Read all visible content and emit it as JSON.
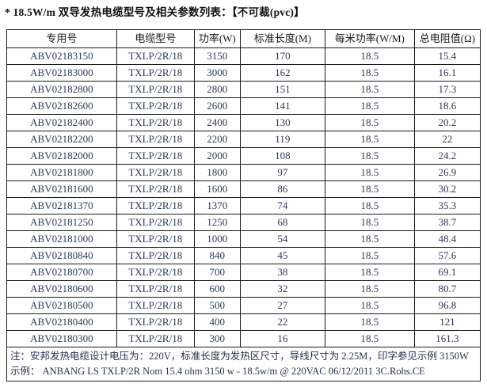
{
  "title": "* 18.5W/m 双导发热电缆型号及相关参数列表：【不可裁(pvc)】",
  "table": {
    "headers": [
      "专用号",
      "电缆型号",
      "功率(W)",
      "标准长度(M)",
      "每米功率(W/M)",
      "总电阻值(Ω)"
    ],
    "rows": [
      [
        "ABV02183150",
        "TXLP/2R/18",
        "3150",
        "170",
        "18.5",
        "15.4"
      ],
      [
        "ABV02183000",
        "TXLP/2R/18",
        "3000",
        "162",
        "18.5",
        "16.1"
      ],
      [
        "ABV02182800",
        "TXLP/2R/18",
        "2800",
        "151",
        "18.5",
        "17.3"
      ],
      [
        "ABV02182600",
        "TXLP/2R/18",
        "2600",
        "141",
        "18.5",
        "18.6"
      ],
      [
        "ABV02182400",
        "TXLP/2R/18",
        "2400",
        "130",
        "18.5",
        "20.2"
      ],
      [
        "ABV02182200",
        "TXLP/2R/18",
        "2200",
        "119",
        "18.5",
        "22"
      ],
      [
        "ABV02182000",
        "TXLP/2R/18",
        "2000",
        "108",
        "18.5",
        "24.2"
      ],
      [
        "ABV02181800",
        "TXLP/2R/18",
        "1800",
        "97",
        "18.5",
        "26.9"
      ],
      [
        "ABV02181600",
        "TXLP/2R/18",
        "1600",
        "86",
        "18.5",
        "30.2"
      ],
      [
        "ABV02181370",
        "TXLP/2R/18",
        "1370",
        "74",
        "18.5",
        "35.3"
      ],
      [
        "ABV02181250",
        "TXLP/2R/18",
        "1250",
        "68",
        "18.5",
        "38.7"
      ],
      [
        "ABV02181000",
        "TXLP/2R/18",
        "1000",
        "54",
        "18.5",
        "48.4"
      ],
      [
        "ABV02180840",
        "TXLP/2R/18",
        "840",
        "45",
        "18.5",
        "57.6"
      ],
      [
        "ABV02180700",
        "TXLP/2R/18",
        "700",
        "38",
        "18.5",
        "69.1"
      ],
      [
        "ABV02180600",
        "TXLP/2R/18",
        "600",
        "32",
        "18.5",
        "80.7"
      ],
      [
        "ABV02180500",
        "TXLP/2R/18",
        "500",
        "27",
        "18.5",
        "96.8"
      ],
      [
        "ABV02180400",
        "TXLP/2R/18",
        "400",
        "22",
        "18.5",
        "121"
      ],
      [
        "ABV02180300",
        "TXLP/2R/18",
        "300",
        "16",
        "18.5",
        "161.3"
      ]
    ]
  },
  "notes": {
    "line1": "注：安邦发热电缆设计电压为：220V，标准长度为发热区尺寸，导线尺寸为 2.25M，印字参见示例 3150W",
    "line2": "示例：  ANBANG LS TXLP/2R Nom 15.4 ohm 3150 w - 18.5w/m @ 220VAC 06/12/2011 3C.Rohs.CE"
  },
  "colors": {
    "background": "#ffffff",
    "border": "#1a1a1a",
    "title_text": "#111111",
    "header_text": "#181818",
    "cell_text": "#2b3a55"
  }
}
